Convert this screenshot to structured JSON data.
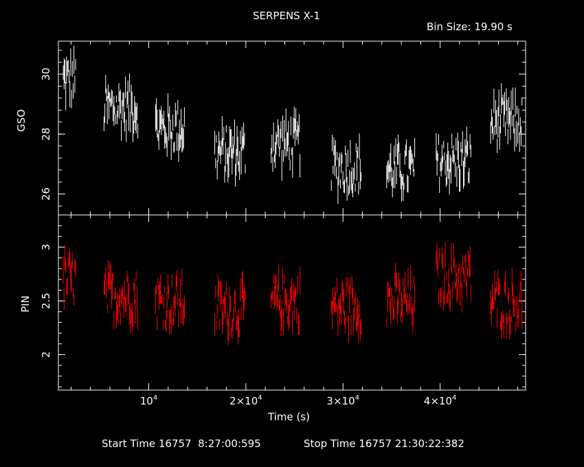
{
  "title": "SERPENS X-1",
  "bin_size": "Bin Size: 19.90 s",
  "footer": {
    "start": "Start Time 16757  8:27:00:595",
    "stop": "Stop Time 16757 21:30:22:382"
  },
  "colors": {
    "background": "#000000",
    "axes": "#ffffff",
    "gso": "#ffffff",
    "pin": "#ff0000"
  },
  "chart_data": [
    {
      "type": "scatter",
      "panel": "top",
      "title": "SERPENS X-1",
      "ylabel": "GSO",
      "xlabel": "Time (s)",
      "xlim": [
        700,
        48800
      ],
      "ylim": [
        25.3,
        31.1
      ],
      "yticks": [
        26,
        28,
        30
      ],
      "ytick_labels": [
        "26",
        "28",
        "30"
      ],
      "series": [
        {
          "name": "GSO",
          "color": "#ffffff",
          "segments": [
            {
              "x": [
                1200,
                2500
              ],
              "mean": 29.8
            },
            {
              "x": [
                5400,
                8900
              ],
              "mean": 28.9
            },
            {
              "x": [
                10700,
                13700
              ],
              "mean": 28.2
            },
            {
              "x": [
                16800,
                20000
              ],
              "mean": 27.4
            },
            {
              "x": [
                22600,
                25600
              ],
              "mean": 27.7
            },
            {
              "x": [
                28800,
                31900
              ],
              "mean": 26.9
            },
            {
              "x": [
                34500,
                37400
              ],
              "mean": 26.8
            },
            {
              "x": [
                39600,
                43200
              ],
              "mean": 27.1
            },
            {
              "x": [
                45200,
                48500
              ],
              "mean": 28.4
            }
          ]
        }
      ]
    },
    {
      "type": "scatter",
      "panel": "bottom",
      "ylabel": "PIN",
      "xlabel": "Time (s)",
      "xlim": [
        700,
        48800
      ],
      "ylim": [
        1.67,
        3.3
      ],
      "yticks": [
        2,
        2.5,
        3
      ],
      "ytick_labels": [
        "2",
        "2.5",
        "3"
      ],
      "xticks": [
        10000,
        20000,
        30000,
        40000
      ],
      "xtick_labels": [
        "10",
        "2×10",
        "3×10",
        "4×10"
      ],
      "xtick_exponent": "4",
      "series": [
        {
          "name": "PIN",
          "color": "#ff0000",
          "segments": [
            {
              "x": [
                1200,
                2500
              ],
              "mean": 2.7
            },
            {
              "x": [
                5400,
                8900
              ],
              "mean": 2.55
            },
            {
              "x": [
                10700,
                13700
              ],
              "mean": 2.5
            },
            {
              "x": [
                16800,
                20000
              ],
              "mean": 2.42
            },
            {
              "x": [
                22600,
                25600
              ],
              "mean": 2.5
            },
            {
              "x": [
                28800,
                31900
              ],
              "mean": 2.45
            },
            {
              "x": [
                34500,
                37400
              ],
              "mean": 2.5
            },
            {
              "x": [
                39600,
                43200
              ],
              "mean": 2.72
            },
            {
              "x": [
                45200,
                48500
              ],
              "mean": 2.48
            }
          ]
        }
      ]
    }
  ]
}
